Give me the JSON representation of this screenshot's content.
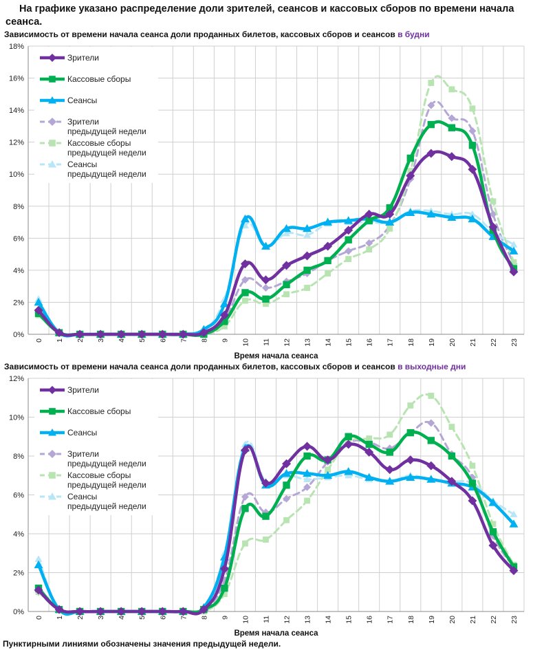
{
  "headline": "На графике указано распределение доли зрителей, сеансов и кассовых сборов по времени начала сеанса.",
  "footnote": "Пунктирными линиями обозначены значения предыдущей недели.",
  "colors": {
    "viewers": "#7030a0",
    "boxoffice": "#00b050",
    "sessions": "#00b0f0",
    "viewers_prev": "#b4a7d6",
    "boxoffice_prev": "#b7e4b0",
    "sessions_prev": "#b9e6f7",
    "grid": "#cfcfcf",
    "axis": "#888888"
  },
  "chart_data": [
    {
      "type": "line",
      "title_prefix": "Зависимость от времени начала сеанса доли проданных билетов, кассовых сборов и сеансов",
      "title_highlight": "в будни",
      "xlabel": "Время начала сеанса",
      "ylabel": "",
      "ylim": [
        0,
        18
      ],
      "yticks": [
        0,
        2,
        4,
        6,
        8,
        10,
        12,
        14,
        16,
        18
      ],
      "ytick_labels": [
        "0%",
        "2%",
        "4%",
        "6%",
        "8%",
        "10%",
        "12%",
        "14%",
        "16%",
        "18%"
      ],
      "categories": [
        "0",
        "1",
        "2",
        "3",
        "4",
        "5",
        "6",
        "7",
        "8",
        "9",
        "10",
        "11",
        "12",
        "13",
        "14",
        "15",
        "16",
        "17",
        "18",
        "19",
        "20",
        "21",
        "22",
        "23"
      ],
      "legend": {
        "position": "top-left",
        "items": [
          {
            "label": "Зрители",
            "sub": ""
          },
          {
            "label": "Кассовые сборы",
            "sub": ""
          },
          {
            "label": "Сеансы",
            "sub": ""
          },
          {
            "label": "Зрители",
            "sub": "предыдущей недели"
          },
          {
            "label": "Кассовые сборы",
            "sub": "предыдущей недели"
          },
          {
            "label": "Сеансы",
            "sub": "предыдущей недели"
          }
        ]
      },
      "series": [
        {
          "name": "Зрители",
          "values": [
            1.5,
            0.1,
            0,
            0,
            0,
            0,
            0,
            0,
            0.1,
            1.2,
            4.4,
            3.4,
            4.3,
            4.9,
            5.5,
            6.5,
            7.5,
            7.5,
            9.9,
            11.3,
            11.1,
            10.3,
            6.7,
            3.9
          ]
        },
        {
          "name": "Кассовые сборы",
          "values": [
            1.3,
            0.1,
            0,
            0,
            0,
            0,
            0,
            0,
            0,
            0.8,
            2.6,
            2.2,
            3.1,
            4.0,
            4.6,
            5.9,
            7.1,
            7.9,
            11.0,
            13.1,
            12.9,
            11.8,
            6.5,
            4.1
          ]
        },
        {
          "name": "Сеансы",
          "values": [
            2.0,
            0.1,
            0,
            0,
            0,
            0,
            0,
            0,
            0.3,
            1.9,
            7.2,
            5.5,
            6.6,
            6.6,
            7.0,
            7.1,
            7.2,
            7.0,
            7.6,
            7.5,
            7.3,
            7.2,
            6.1,
            5.2
          ]
        },
        {
          "name": "Зрители предыдущей недели",
          "values": [
            1.4,
            0.1,
            0,
            0,
            0,
            0,
            0,
            0,
            0.1,
            0.9,
            3.4,
            2.9,
            3.3,
            3.8,
            4.6,
            5.2,
            5.7,
            6.8,
            9.7,
            14.3,
            13.5,
            12.7,
            7.5,
            4.4
          ]
        },
        {
          "name": "Кассовые сборы предыдущей недели",
          "values": [
            1.2,
            0.1,
            0,
            0,
            0,
            0,
            0,
            0,
            0,
            0.5,
            2.1,
            1.9,
            2.5,
            2.9,
            3.8,
            4.7,
            5.3,
            6.6,
            10.2,
            15.7,
            15.3,
            14.1,
            8.3,
            4.5
          ]
        },
        {
          "name": "Сеансы предыдущей недели",
          "values": [
            2.2,
            0.1,
            0,
            0,
            0,
            0,
            0,
            0,
            0.2,
            2.2,
            6.8,
            5.5,
            6.3,
            6.2,
            6.9,
            7.0,
            7.0,
            7.0,
            7.7,
            7.7,
            7.5,
            7.5,
            6.4,
            5.6
          ]
        }
      ]
    },
    {
      "type": "line",
      "title_prefix": "Зависимость от времени начала сеанса доли проданных билетов, кассовых сборов и сеансов",
      "title_highlight": "в выходные дни",
      "xlabel": "Время начала сеанса",
      "ylabel": "",
      "ylim": [
        0,
        12
      ],
      "yticks": [
        0,
        2,
        4,
        6,
        8,
        10,
        12
      ],
      "ytick_labels": [
        "0%",
        "2%",
        "4%",
        "6%",
        "8%",
        "10%",
        "12%"
      ],
      "categories": [
        "0",
        "1",
        "2",
        "3",
        "4",
        "5",
        "6",
        "7",
        "8",
        "9",
        "10",
        "11",
        "12",
        "13",
        "14",
        "15",
        "16",
        "17",
        "18",
        "19",
        "20",
        "21",
        "22",
        "23"
      ],
      "legend": {
        "position": "top-left",
        "items": [
          {
            "label": "Зрители",
            "sub": ""
          },
          {
            "label": "Кассовые сборы",
            "sub": ""
          },
          {
            "label": "Сеансы",
            "sub": ""
          },
          {
            "label": "Зрители",
            "sub": "предыдущей недели"
          },
          {
            "label": "Кассовые сборы",
            "sub": "предыдущей недели"
          },
          {
            "label": "Сеансы",
            "sub": "предыдущей недели"
          }
        ]
      },
      "series": [
        {
          "name": "Зрители",
          "values": [
            1.1,
            0.1,
            0,
            0,
            0,
            0,
            0,
            0,
            0.1,
            2.2,
            8.3,
            6.6,
            7.6,
            8.5,
            7.8,
            8.6,
            8.2,
            7.3,
            7.8,
            7.5,
            6.7,
            5.7,
            3.4,
            2.1
          ]
        },
        {
          "name": "Кассовые сборы",
          "values": [
            1.2,
            0.1,
            0,
            0,
            0,
            0,
            0,
            0,
            0.1,
            1.2,
            5.3,
            4.9,
            6.5,
            8.0,
            7.8,
            9.0,
            8.6,
            8.2,
            9.2,
            8.8,
            8.0,
            6.6,
            4.1,
            2.3
          ]
        },
        {
          "name": "Сеансы",
          "values": [
            2.4,
            0.1,
            0,
            0,
            0,
            0,
            0,
            0,
            0.2,
            2.8,
            8.4,
            6.5,
            7.1,
            7.1,
            7.0,
            7.2,
            6.9,
            6.7,
            6.9,
            6.8,
            6.6,
            6.4,
            5.6,
            4.5
          ]
        },
        {
          "name": "Зрители предыдущей недели",
          "values": [
            1.0,
            0.1,
            0,
            0,
            0,
            0,
            0,
            0,
            0.1,
            1.6,
            5.9,
            5.1,
            5.8,
            6.4,
            7.7,
            8.7,
            8.7,
            8.4,
            9.2,
            9.7,
            8.1,
            6.9,
            3.9,
            2.3
          ]
        },
        {
          "name": "Кассовые сборы предыдущей недели",
          "values": [
            1.0,
            0.1,
            0,
            0,
            0,
            0,
            0,
            0,
            0,
            0.9,
            3.5,
            3.7,
            4.7,
            5.7,
            7.3,
            8.7,
            8.9,
            9.1,
            10.6,
            11.1,
            9.5,
            7.5,
            4.5,
            2.4
          ]
        },
        {
          "name": "Сеансы предыдущей недели",
          "values": [
            2.7,
            0.1,
            0,
            0,
            0,
            0,
            0,
            0,
            0.2,
            3.0,
            8.6,
            6.7,
            7.0,
            6.8,
            6.9,
            7.0,
            6.8,
            6.7,
            7.0,
            6.8,
            6.7,
            6.6,
            5.7,
            5.0
          ]
        }
      ]
    }
  ]
}
